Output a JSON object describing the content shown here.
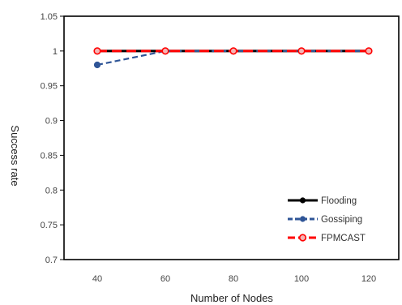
{
  "chart_data": {
    "type": "line",
    "xlabel": "Number of Nodes",
    "ylabel": "Success rate",
    "x": [
      40,
      60,
      80,
      100,
      120
    ],
    "ylim": [
      0.7,
      1.05
    ],
    "yticks": [
      "0.7",
      "0.75",
      "0.8",
      "0.85",
      "0.9",
      "0.95",
      "1",
      "1.05"
    ],
    "grid": false,
    "legend_position": "bottom-right",
    "series": [
      {
        "name": "Flooding",
        "values": [
          1,
          1,
          1,
          1,
          1
        ],
        "color": "#000000",
        "line_style": "solid",
        "marker": "filled-circle"
      },
      {
        "name": "Gossiping",
        "values": [
          0.98,
          1,
          1,
          1,
          1
        ],
        "color": "#2f5597",
        "line_style": "dashed",
        "marker": "filled-circle"
      },
      {
        "name": "FPMCAST",
        "values": [
          1,
          1,
          1,
          1,
          1
        ],
        "color": "#ff0000",
        "line_style": "dashed",
        "marker": "hollow-circle"
      }
    ]
  }
}
